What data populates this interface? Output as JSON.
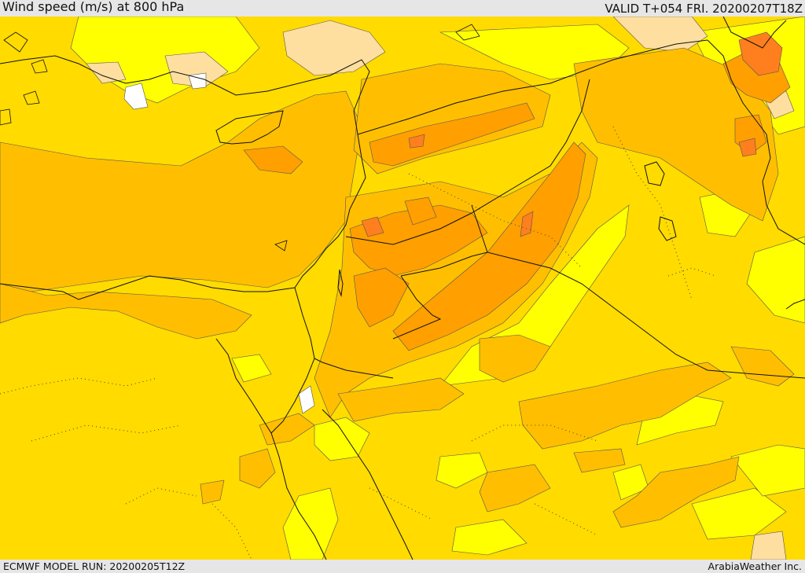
{
  "header": {
    "title": "Wind speed (m/s) at 800 hPa",
    "valid_time": "VALID T+054 FRI. 20200207T18Z"
  },
  "footer": {
    "model_run": "ECMWF MODEL RUN: 20200205T12Z",
    "credit": "ArabiaWeather Inc."
  },
  "legend_colors": {
    "very_light": "#ffffff",
    "light": "#ffff00",
    "moderate": "#ffdb00",
    "strong": "#ffbf00",
    "stronger": "#ff9f00",
    "strongest": "#ff7f1e",
    "calm_peach": "#ffdfa0"
  }
}
